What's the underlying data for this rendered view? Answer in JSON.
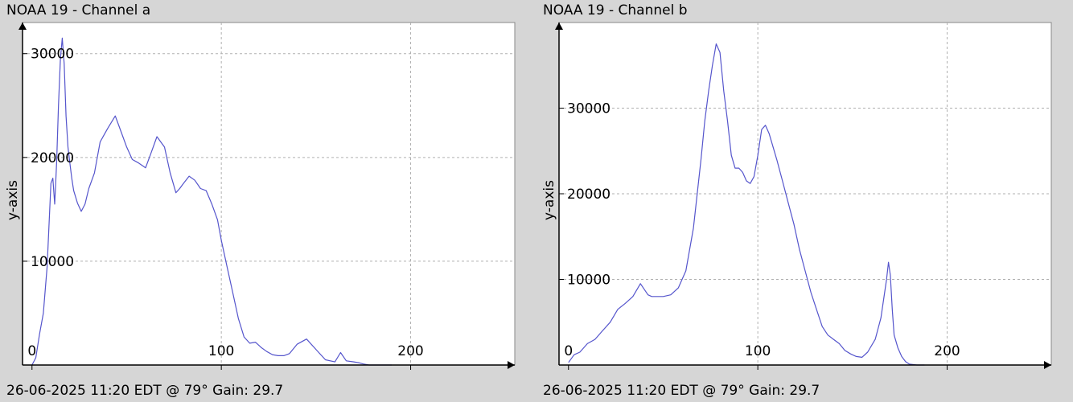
{
  "colors": {
    "background": "#d6d6d6",
    "plot_area": "#ffffff",
    "line": "#5555cc",
    "grid": "#b0b0b0",
    "axis": "#000000"
  },
  "chart_data": [
    {
      "type": "line",
      "title": "NOAA 19 - Channel a",
      "ylabel": "y-axis",
      "xlabel": "",
      "footer": "26-06-2025 11:20 EDT @ 79° Gain: 29.7",
      "xlim": [
        -5,
        255
      ],
      "ylim": [
        0,
        33000
      ],
      "x_ticks": [
        0,
        100,
        200
      ],
      "y_ticks": [
        10000,
        20000,
        30000
      ],
      "x_tick_labels": [
        "0",
        "100",
        "200"
      ],
      "y_tick_labels": [
        "10000",
        "20000",
        "30000"
      ],
      "grid": true,
      "series": [
        {
          "x": [
            0,
            2,
            4,
            6,
            8,
            10,
            11,
            12,
            13,
            14,
            15,
            16,
            17,
            18,
            19,
            20,
            21,
            22,
            24,
            26,
            28,
            30,
            33,
            36,
            40,
            44,
            47,
            50,
            53,
            56,
            60,
            63,
            66,
            70,
            73,
            76,
            78,
            80,
            83,
            86,
            89,
            92,
            95,
            98,
            100,
            103,
            106,
            109,
            112,
            115,
            118,
            121,
            124,
            127,
            130,
            133,
            136,
            140,
            145,
            150,
            155,
            160,
            163,
            166,
            170,
            173,
            175,
            178,
            181,
            184,
            188,
            190
          ],
          "y": [
            0,
            700,
            3000,
            5000,
            9500,
            17500,
            18000,
            15500,
            19500,
            25000,
            29500,
            31500,
            29000,
            24000,
            21000,
            19500,
            18000,
            16800,
            15600,
            14800,
            15500,
            17000,
            18500,
            21500,
            22800,
            24000,
            22500,
            21000,
            19800,
            19500,
            19000,
            20500,
            22000,
            21000,
            18500,
            16600,
            17000,
            17500,
            18200,
            17800,
            17000,
            16800,
            15500,
            14000,
            12000,
            9500,
            7000,
            4500,
            2700,
            2100,
            2200,
            1700,
            1300,
            1000,
            900,
            900,
            1100,
            2000,
            2500,
            1500,
            500,
            300,
            1200,
            400,
            300,
            200,
            100,
            0,
            0,
            0,
            0,
            0
          ]
        }
      ]
    },
    {
      "type": "line",
      "title": "NOAA 19 - Channel b",
      "ylabel": "y-axis",
      "xlabel": "",
      "footer": "26-06-2025 11:20 EDT @ 79° Gain: 29.7",
      "xlim": [
        -5,
        255
      ],
      "ylim": [
        0,
        40000
      ],
      "x_ticks": [
        0,
        100,
        200
      ],
      "y_ticks": [
        10000,
        20000,
        30000
      ],
      "x_tick_labels": [
        "0",
        "100",
        "200"
      ],
      "y_tick_labels": [
        "10000",
        "20000",
        "30000"
      ],
      "grid": true,
      "series": [
        {
          "x": [
            0,
            3,
            6,
            10,
            14,
            18,
            22,
            26,
            30,
            34,
            38,
            42,
            44,
            47,
            50,
            54,
            58,
            62,
            66,
            70,
            72,
            74,
            76,
            78,
            80,
            82,
            84,
            86,
            88,
            90,
            92,
            94,
            96,
            98,
            100,
            102,
            104,
            106,
            108,
            110,
            113,
            116,
            119,
            122,
            125,
            128,
            131,
            134,
            137,
            140,
            143,
            146,
            149,
            152,
            155,
            158,
            162,
            165,
            168,
            169,
            170,
            171,
            172,
            174,
            176,
            178,
            180,
            184,
            188
          ],
          "y": [
            300,
            1200,
            1500,
            2500,
            3000,
            4000,
            5000,
            6500,
            7200,
            8000,
            9500,
            8200,
            8000,
            8000,
            8000,
            8200,
            9000,
            11000,
            16000,
            24000,
            28500,
            32000,
            35000,
            37500,
            36500,
            32000,
            28500,
            24500,
            23000,
            23000,
            22500,
            21500,
            21200,
            22000,
            24500,
            27500,
            28000,
            27000,
            25500,
            24000,
            21500,
            19000,
            16500,
            13500,
            11000,
            8500,
            6500,
            4500,
            3500,
            3000,
            2500,
            1700,
            1300,
            1000,
            900,
            1500,
            3000,
            5500,
            10000,
            12000,
            10500,
            6500,
            3500,
            2000,
            1000,
            400,
            100,
            0,
            0
          ]
        }
      ]
    }
  ]
}
